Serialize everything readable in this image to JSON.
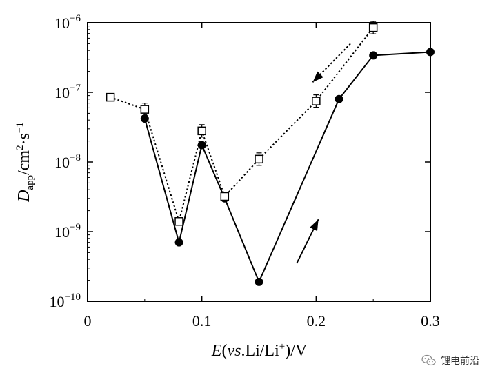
{
  "chart_data": {
    "type": "scatter",
    "x_axis": {
      "label_italic": "E",
      "label_paren_open": "(",
      "label_vs": "vs",
      "label_rest": ".Li/Li",
      "label_sup": "+",
      "label_tail": ")/V",
      "range": [
        0,
        0.3
      ],
      "ticks": [
        0,
        0.1,
        0.2,
        0.3
      ],
      "tick_labels": [
        "0",
        "0.1",
        "0.2",
        "0.3"
      ]
    },
    "y_axis": {
      "label_italic": "D",
      "label_sub": "app",
      "label_mid": "/cm",
      "label_sup1": "2",
      "label_dot": "·s",
      "label_sup2": "−1",
      "scale": "log",
      "range": [
        1e-10,
        1e-06
      ],
      "ticks": [
        {
          "value": 1e-10,
          "base": "10",
          "exp": "−10"
        },
        {
          "value": 1e-09,
          "base": "10",
          "exp": "−9"
        },
        {
          "value": 1e-08,
          "base": "10",
          "exp": "−8"
        },
        {
          "value": 1e-07,
          "base": "10",
          "exp": "−7"
        },
        {
          "value": 1e-06,
          "base": "10",
          "exp": "−6"
        }
      ]
    },
    "series": [
      {
        "marker": "filled-circle",
        "line": "solid",
        "points": [
          {
            "x": 0.05,
            "y": 4.2e-08
          },
          {
            "x": 0.08,
            "y": 7e-10
          },
          {
            "x": 0.1,
            "y": 1.75e-08
          },
          {
            "x": 0.12,
            "y": 3e-09
          },
          {
            "x": 0.15,
            "y": 1.9e-10
          },
          {
            "x": 0.22,
            "y": 8e-08
          },
          {
            "x": 0.25,
            "y": 3.4e-07
          },
          {
            "x": 0.3,
            "y": 3.8e-07
          }
        ]
      },
      {
        "marker": "open-square",
        "line": "dotted",
        "points": [
          {
            "x": 0.02,
            "y": 8.5e-08
          },
          {
            "x": 0.05,
            "y": 5.7e-08,
            "err": true
          },
          {
            "x": 0.08,
            "y": 1.4e-09
          },
          {
            "x": 0.1,
            "y": 2.8e-08,
            "err": true
          },
          {
            "x": 0.12,
            "y": 3.2e-09
          },
          {
            "x": 0.15,
            "y": 1.1e-08,
            "err": true
          },
          {
            "x": 0.2,
            "y": 7.5e-08,
            "err": true
          },
          {
            "x": 0.25,
            "y": 8.5e-07,
            "err": true
          }
        ]
      }
    ],
    "annotations": [
      {
        "type": "arrow",
        "style": "dotted",
        "direction": "down-left",
        "from": {
          "x": 0.23,
          "y": 5e-07
        },
        "to": {
          "x": 0.197,
          "y": 1.4e-07
        }
      },
      {
        "type": "arrow",
        "style": "solid",
        "direction": "up-right",
        "from": {
          "x": 0.183,
          "y": 3.5e-10
        },
        "to": {
          "x": 0.202,
          "y": 1.5e-09
        }
      }
    ],
    "grid": false,
    "legend": "none"
  },
  "watermark": {
    "text": "锂电前沿",
    "icon": "wechat-icon"
  },
  "colors": {
    "ink": "#000000",
    "background": "#ffffff"
  }
}
